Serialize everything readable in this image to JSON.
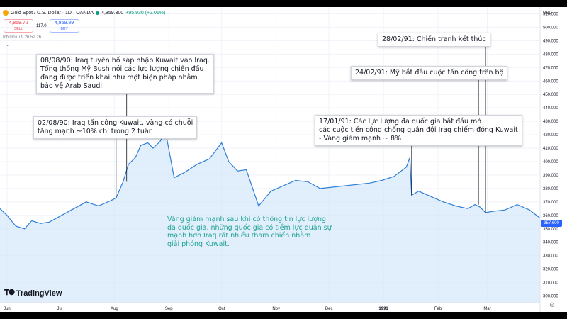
{
  "header": {
    "title": "Gold Spot / U.S. Dollar · 1D · OANDA",
    "price": "4,859.300",
    "change": "+95.930 (+2.01%)"
  },
  "trade": {
    "sell_price": "4,858.72",
    "sell_label": "SELL",
    "spread": "117.0",
    "buy_price": "4,859.89",
    "buy_label": "BUY"
  },
  "indicator": "Ichimoku 9 26 52 26",
  "currency": "USD",
  "last_price": "357.600",
  "brand": "TradingView",
  "annotations": [
    {
      "id": "a1",
      "lines": [
        "08/08/90: Iraq tuyên bố sáp nhập Kuwait vào Iraq.",
        "Tổng thống Mỹ Bush nói các lực lượng chiến đấu",
        "đang được triển khai như một biện pháp nhằm",
        "bảo vệ Arab Saudi."
      ]
    },
    {
      "id": "a2",
      "lines": [
        "02/08/90: Iraq tấn công Kuwait, vàng có chuỗi",
        "tăng mạnh ~10% chỉ trong 2 tuần"
      ]
    },
    {
      "id": "a3",
      "lines": [
        "28/02/91: Chiến tranh kết thúc"
      ]
    },
    {
      "id": "a4",
      "lines": [
        "24/02/91: Mỹ bắt đầu cuộc tấn công trên bộ"
      ]
    },
    {
      "id": "a5",
      "lines": [
        "17/01/91: Các lực lượng đa quốc gia bắt đầu mở",
        "các cuộc tiến công chống quân đội Iraq chiếm đóng Kuwait",
        "- Vàng giảm mạnh ~ 8%"
      ]
    }
  ],
  "note_lines": [
    "Vàng giảm mạnh sau khi có thông tin lực lượng",
    "đa quốc gia, những quốc gia có tiềm lực quân sự",
    "mạnh hơn Iraq rất nhiều tham chiến nhằm",
    "giải phóng Kuwait."
  ],
  "colors": {
    "line": "#2f7fd7",
    "fill": "#d7e8fa",
    "note": "#1fa396"
  },
  "chart_data": {
    "type": "area",
    "x_ticks": [
      "Jun",
      "Jul",
      "Aug",
      "Sep",
      "Oct",
      "Nov",
      "Dec",
      "1991",
      "Feb",
      "Mar"
    ],
    "y_ticks": [
      300,
      310,
      320,
      330,
      340,
      350,
      360,
      370,
      380,
      390,
      400,
      410,
      420,
      430,
      440,
      450,
      460,
      470,
      480,
      490,
      500,
      510
    ],
    "ylim": [
      295,
      515
    ],
    "xlim": [
      "1990-05-28",
      "1991-03-31"
    ],
    "series": [
      {
        "x": [
          "1990-05-28",
          "1990-06-01",
          "1990-06-06",
          "1990-06-11",
          "1990-06-15",
          "1990-06-20",
          "1990-06-25",
          "1990-07-02",
          "1990-07-09",
          "1990-07-16",
          "1990-07-23",
          "1990-07-30",
          "1990-08-02",
          "1990-08-06",
          "1990-08-09",
          "1990-08-13",
          "1990-08-16",
          "1990-08-20",
          "1990-08-23",
          "1990-08-27",
          "1990-08-30",
          "1990-09-04",
          "1990-09-10",
          "1990-09-17",
          "1990-09-24",
          "1990-10-01",
          "1990-10-05",
          "1990-10-10",
          "1990-10-15",
          "1990-10-22",
          "1990-10-29",
          "1990-11-05",
          "1990-11-12",
          "1990-11-19",
          "1990-11-26",
          "1990-12-03",
          "1990-12-10",
          "1990-12-17",
          "1990-12-24",
          "1990-12-31",
          "1991-01-07",
          "1991-01-14",
          "1991-01-16",
          "1991-01-17",
          "1991-01-21",
          "1991-01-28",
          "1991-02-04",
          "1991-02-11",
          "1991-02-18",
          "1991-02-22",
          "1991-02-25",
          "1991-02-28",
          "1991-03-04",
          "1991-03-11",
          "1991-03-18",
          "1991-03-25",
          "1991-03-31"
        ],
        "y": [
          365,
          360,
          352,
          350,
          356,
          354,
          355,
          360,
          365,
          370,
          367,
          371,
          373,
          385,
          398,
          403,
          412,
          414,
          410,
          415,
          423,
          388,
          392,
          398,
          402,
          414,
          400,
          393,
          394,
          367,
          378,
          382,
          386,
          385,
          380,
          381,
          382,
          383,
          384,
          386,
          389,
          396,
          403,
          375,
          378,
          374,
          370,
          367,
          365,
          368,
          366,
          362,
          363,
          364,
          368,
          364,
          358
        ]
      }
    ]
  }
}
